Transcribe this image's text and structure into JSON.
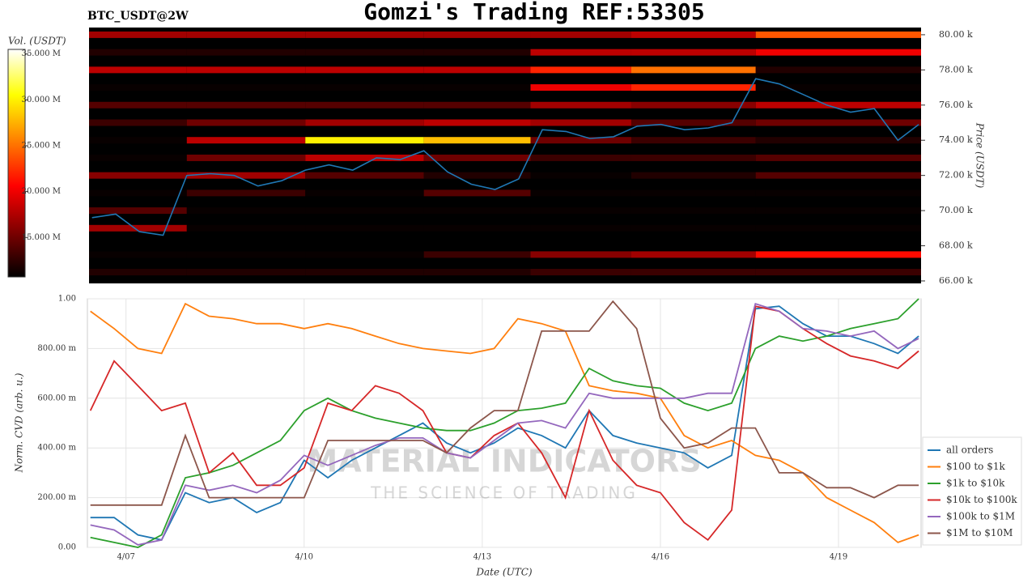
{
  "chart_data": [
    {
      "type": "heatmap",
      "title": "Gomzi's Trading REF:53305",
      "subtitle": "BTC_USDT@2W",
      "y_label": "Price (USDT)",
      "colorbar_label": "Vol. (USDT)",
      "colormap": "hot",
      "xlim": [
        6.35,
        20.39
      ],
      "ylim": [
        65860,
        80410
      ],
      "yticks": [
        {
          "value": 66000,
          "label": "66.00 k"
        },
        {
          "value": 68000,
          "label": "68.00 k"
        },
        {
          "value": 70000,
          "label": "70.00 k"
        },
        {
          "value": 72000,
          "label": "72.00 k"
        },
        {
          "value": 74000,
          "label": "74.00 k"
        },
        {
          "value": 76000,
          "label": "76.00 k"
        },
        {
          "value": 78000,
          "label": "78.00 k"
        },
        {
          "value": 80000,
          "label": "80.00 k"
        }
      ],
      "clim": [
        10700000,
        35500000
      ],
      "cticks": [
        {
          "value": 15000000,
          "label": "15.000 M"
        },
        {
          "value": 20000000,
          "label": "20.000 M"
        },
        {
          "value": 25000000,
          "label": "25.000 M"
        },
        {
          "value": 30000000,
          "label": "30.000 M"
        },
        {
          "value": 35000000,
          "label": "35.000 M"
        }
      ],
      "heat_edges": [
        6.35,
        8,
        10,
        12,
        13.8,
        15.5,
        17.6,
        20.39
      ],
      "price_levels": [
        80000,
        79000,
        78000,
        77000,
        76000,
        75000,
        74000,
        73000,
        72000,
        71000,
        70000,
        69000,
        67500,
        66500
      ],
      "volume": [
        [
          17000000,
          17000000,
          17000000,
          17000000,
          17000000,
          18000000,
          24000000
        ],
        [
          12000000,
          12000000,
          12000000,
          12000000,
          18000000,
          18000000,
          20000000
        ],
        [
          18000000,
          18000000,
          18000000,
          18000000,
          22000000,
          25000000,
          12000000
        ],
        [
          11000000,
          11000000,
          11000000,
          11000000,
          20000000,
          22000000,
          11000000
        ],
        [
          14000000,
          14000000,
          14000000,
          14000000,
          17000000,
          16000000,
          18000000
        ],
        [
          13000000,
          15000000,
          17000000,
          18000000,
          17000000,
          14000000,
          15000000
        ],
        [
          11000000,
          18000000,
          30000000,
          28000000,
          15000000,
          13000000,
          12000000
        ],
        [
          11000000,
          15000000,
          18000000,
          15000000,
          13000000,
          13000000,
          14000000
        ],
        [
          16000000,
          17000000,
          14000000,
          12000000,
          11000000,
          12000000,
          14000000
        ],
        [
          11000000,
          13000000,
          11000000,
          14000000,
          11000000,
          11000000,
          11000000
        ],
        [
          14000000,
          11000000,
          11000000,
          11000000,
          11000000,
          11000000,
          11000000
        ],
        [
          17000000,
          11000000,
          11000000,
          11000000,
          11000000,
          11000000,
          11000000
        ],
        [
          11000000,
          11000000,
          11000000,
          13000000,
          16000000,
          17000000,
          21000000
        ],
        [
          12000000,
          12000000,
          12000000,
          12000000,
          13000000,
          13000000,
          13000000
        ]
      ],
      "x": [
        6.4,
        6.8,
        7.2,
        7.6,
        8.0,
        8.4,
        8.8,
        9.2,
        9.6,
        10.0,
        10.4,
        10.8,
        11.2,
        11.6,
        12.0,
        12.4,
        12.8,
        13.2,
        13.6,
        14.0,
        14.4,
        14.8,
        15.2,
        15.6,
        16.0,
        16.4,
        16.8,
        17.2,
        17.6,
        18.0,
        18.4,
        18.8,
        19.2,
        19.6,
        20.0,
        20.35
      ],
      "price": {
        "color": "#1f77b4",
        "values": [
          69600,
          69800,
          68800,
          68600,
          72000,
          72100,
          72000,
          71400,
          71700,
          72300,
          72600,
          72300,
          73000,
          72900,
          73400,
          72200,
          71500,
          71200,
          71800,
          74600,
          74500,
          74100,
          74200,
          74800,
          74900,
          74600,
          74700,
          75000,
          77500,
          77200,
          76600,
          76000,
          75600,
          75800,
          74000,
          74900
        ]
      }
    },
    {
      "type": "line",
      "x_label": "Date (UTC)",
      "y_label": "Norm. CVD (arb. u.)",
      "watermark": [
        "MATERIAL INDICATORS",
        "THE SCIENCE OF TRADING"
      ],
      "grid": true,
      "legend": "lower right",
      "xlim": [
        6.35,
        20.39
      ],
      "xticks": [
        {
          "value": 7,
          "label": "4/07"
        },
        {
          "value": 10,
          "label": "4/10"
        },
        {
          "value": 13,
          "label": "4/13"
        },
        {
          "value": 16,
          "label": "4/16"
        },
        {
          "value": 19,
          "label": "4/19"
        }
      ],
      "ylim": [
        0,
        1
      ],
      "yticks": [
        {
          "value": 0,
          "label": "0.00"
        },
        {
          "value": 0.2,
          "label": "200.00 m"
        },
        {
          "value": 0.4,
          "label": "400.00 m"
        },
        {
          "value": 0.6,
          "label": "600.00 m"
        },
        {
          "value": 0.8,
          "label": "800.00 m"
        },
        {
          "value": 1,
          "label": "1.00"
        }
      ],
      "x": [
        6.4,
        6.8,
        7.2,
        7.6,
        8.0,
        8.4,
        8.8,
        9.2,
        9.6,
        10.0,
        10.4,
        10.8,
        11.2,
        11.6,
        12.0,
        12.4,
        12.8,
        13.2,
        13.6,
        14.0,
        14.4,
        14.8,
        15.2,
        15.6,
        16.0,
        16.4,
        16.8,
        17.2,
        17.6,
        18.0,
        18.4,
        18.8,
        19.2,
        19.6,
        20.0,
        20.35
      ],
      "series": [
        {
          "name": "all orders",
          "color": "#1f77b4",
          "values": [
            0.12,
            0.12,
            0.05,
            0.03,
            0.22,
            0.18,
            0.2,
            0.14,
            0.18,
            0.35,
            0.28,
            0.35,
            0.4,
            0.45,
            0.5,
            0.42,
            0.38,
            0.42,
            0.48,
            0.45,
            0.4,
            0.55,
            0.45,
            0.42,
            0.4,
            0.38,
            0.32,
            0.37,
            0.96,
            0.97,
            0.9,
            0.85,
            0.85,
            0.82,
            0.78,
            0.85
          ]
        },
        {
          "name": "$100 to $1k",
          "color": "#ff7f0e",
          "values": [
            0.95,
            0.88,
            0.8,
            0.78,
            0.98,
            0.93,
            0.92,
            0.9,
            0.9,
            0.88,
            0.9,
            0.88,
            0.85,
            0.82,
            0.8,
            0.79,
            0.78,
            0.8,
            0.92,
            0.9,
            0.87,
            0.65,
            0.63,
            0.62,
            0.6,
            0.45,
            0.4,
            0.43,
            0.37,
            0.35,
            0.3,
            0.2,
            0.15,
            0.1,
            0.02,
            0.05
          ]
        },
        {
          "name": "$1k to $10k",
          "color": "#2ca02c",
          "values": [
            0.04,
            0.02,
            0.0,
            0.05,
            0.28,
            0.3,
            0.33,
            0.38,
            0.43,
            0.55,
            0.6,
            0.55,
            0.52,
            0.5,
            0.48,
            0.47,
            0.47,
            0.5,
            0.55,
            0.56,
            0.58,
            0.72,
            0.67,
            0.65,
            0.64,
            0.58,
            0.55,
            0.58,
            0.8,
            0.85,
            0.83,
            0.85,
            0.88,
            0.9,
            0.92,
            1.0
          ]
        },
        {
          "name": "$10k to $100k",
          "color": "#d62728",
          "values": [
            0.55,
            0.75,
            0.65,
            0.55,
            0.58,
            0.3,
            0.38,
            0.25,
            0.25,
            0.32,
            0.58,
            0.55,
            0.65,
            0.62,
            0.55,
            0.38,
            0.36,
            0.45,
            0.5,
            0.38,
            0.2,
            0.55,
            0.35,
            0.25,
            0.22,
            0.1,
            0.03,
            0.15,
            0.97,
            0.95,
            0.88,
            0.82,
            0.77,
            0.75,
            0.72,
            0.79
          ]
        },
        {
          "name": "$100k to $1M",
          "color": "#9467bd",
          "values": [
            0.09,
            0.07,
            0.01,
            0.03,
            0.25,
            0.23,
            0.25,
            0.22,
            0.27,
            0.37,
            0.33,
            0.37,
            0.41,
            0.44,
            0.44,
            0.38,
            0.36,
            0.43,
            0.5,
            0.51,
            0.48,
            0.62,
            0.6,
            0.6,
            0.6,
            0.6,
            0.62,
            0.62,
            0.98,
            0.95,
            0.88,
            0.87,
            0.85,
            0.87,
            0.8,
            0.84
          ]
        },
        {
          "name": "$1M to $10M",
          "color": "#8c564b",
          "values": [
            0.17,
            0.17,
            0.17,
            0.17,
            0.45,
            0.2,
            0.2,
            0.2,
            0.2,
            0.2,
            0.43,
            0.43,
            0.43,
            0.43,
            0.43,
            0.38,
            0.48,
            0.55,
            0.55,
            0.87,
            0.87,
            0.87,
            0.99,
            0.88,
            0.52,
            0.4,
            0.42,
            0.48,
            0.48,
            0.3,
            0.3,
            0.24,
            0.24,
            0.2,
            0.25,
            0.25
          ]
        }
      ]
    }
  ]
}
